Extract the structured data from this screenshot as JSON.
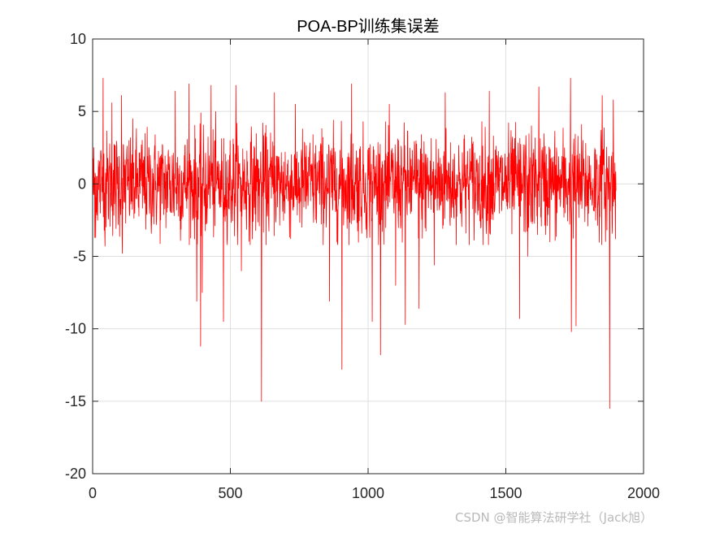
{
  "chart_data": {
    "type": "line",
    "title": "POA-BP训练集误差",
    "xlabel": "",
    "ylabel": "",
    "xlim": [
      0,
      2000
    ],
    "ylim": [
      -20,
      10
    ],
    "xticks": [
      0,
      500,
      1000,
      1500,
      2000
    ],
    "yticks": [
      10,
      5,
      0,
      -5,
      -10,
      -15,
      -20
    ],
    "xtick_labels": [
      "0",
      "500",
      "1000",
      "1500",
      "2000"
    ],
    "ytick_labels": [
      "10",
      "5",
      "0",
      "-5",
      "-10",
      "-15",
      "-20"
    ],
    "grid": true,
    "series": [
      {
        "color": "#ff0000",
        "n_points": 1900,
        "noise_std": 1.8,
        "spikes": [
          {
            "x": 8,
            "y": -3.7
          },
          {
            "x": 38,
            "y": 7.3
          },
          {
            "x": 45,
            "y": -4.3
          },
          {
            "x": 70,
            "y": 5.6
          },
          {
            "x": 105,
            "y": 6.1
          },
          {
            "x": 108,
            "y": -4.8
          },
          {
            "x": 300,
            "y": 6.4
          },
          {
            "x": 350,
            "y": 6.9
          },
          {
            "x": 378,
            "y": -8.1
          },
          {
            "x": 392,
            "y": -11.2
          },
          {
            "x": 398,
            "y": -7.5
          },
          {
            "x": 430,
            "y": 6.8
          },
          {
            "x": 475,
            "y": -9.5
          },
          {
            "x": 520,
            "y": 6.8
          },
          {
            "x": 540,
            "y": -6.0
          },
          {
            "x": 613,
            "y": -15.0
          },
          {
            "x": 660,
            "y": 6.3
          },
          {
            "x": 860,
            "y": -8.1
          },
          {
            "x": 905,
            "y": -12.8
          },
          {
            "x": 940,
            "y": 6.9
          },
          {
            "x": 1015,
            "y": -9.5
          },
          {
            "x": 1045,
            "y": -11.8
          },
          {
            "x": 1100,
            "y": -7.0
          },
          {
            "x": 1135,
            "y": -9.7
          },
          {
            "x": 1185,
            "y": -8.6
          },
          {
            "x": 1240,
            "y": -5.6
          },
          {
            "x": 1280,
            "y": 6.3
          },
          {
            "x": 1440,
            "y": 6.4
          },
          {
            "x": 1550,
            "y": -9.3
          },
          {
            "x": 1580,
            "y": -5.0
          },
          {
            "x": 1620,
            "y": 6.7
          },
          {
            "x": 1735,
            "y": 7.3
          },
          {
            "x": 1738,
            "y": -10.2
          },
          {
            "x": 1755,
            "y": -9.8
          },
          {
            "x": 1850,
            "y": 6.1
          },
          {
            "x": 1877,
            "y": -15.5
          },
          {
            "x": 1890,
            "y": 5.8
          }
        ]
      }
    ]
  },
  "watermark": "CSDN @智能算法研学社（Jack旭）"
}
